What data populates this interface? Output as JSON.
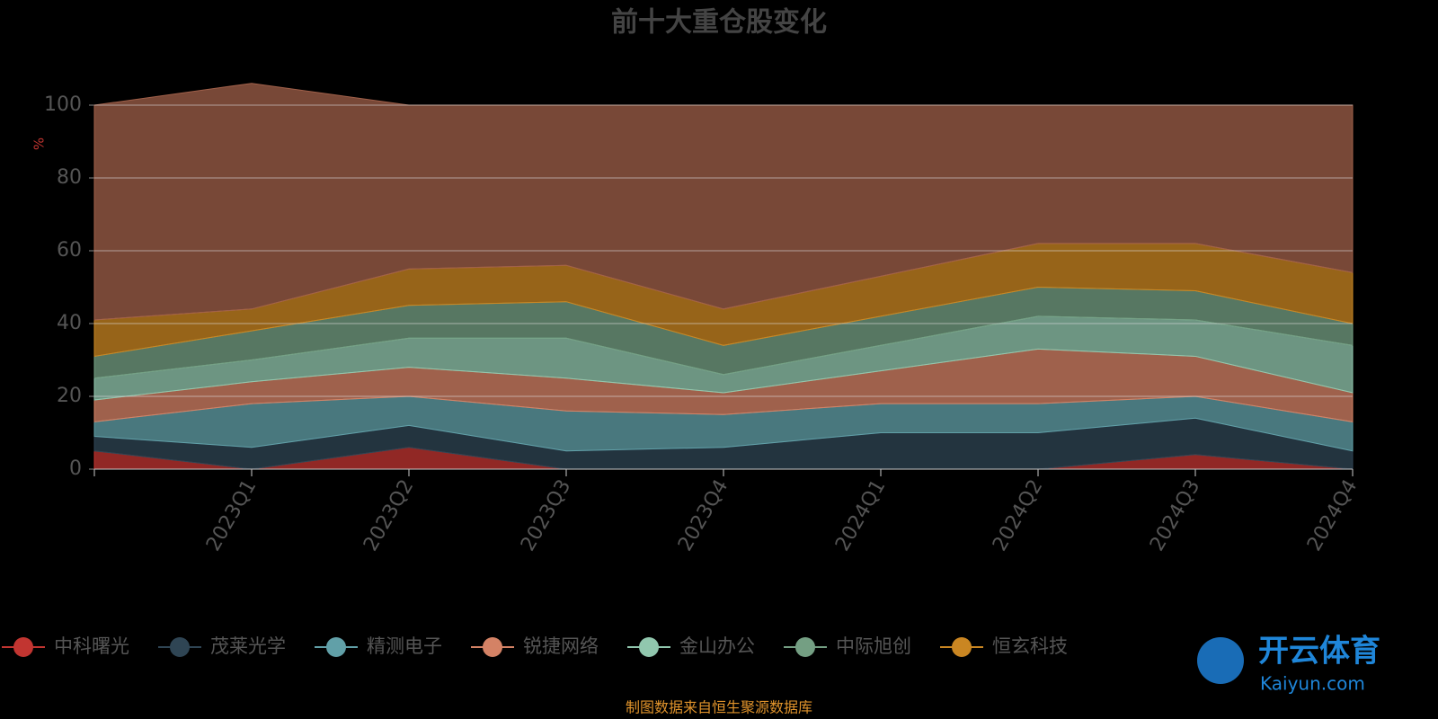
{
  "chart_data": {
    "type": "stacked-area",
    "title": "前十大重仓股变化",
    "y_label": "%",
    "categories": [
      null,
      "2023Q1",
      "2023Q2",
      "2023Q3",
      "2023Q4",
      "2024Q1",
      "2024Q2",
      "2024Q3",
      "2024Q4"
    ],
    "ylim": [
      0,
      100
    ],
    "yticks": [
      0,
      20,
      40,
      60,
      80,
      100
    ],
    "grid": true,
    "series": [
      {
        "name": "中科曙光",
        "color": "#c23531",
        "values": [
          5,
          0,
          6,
          0,
          0,
          0,
          0,
          4,
          0
        ]
      },
      {
        "name": "茂莱光学",
        "color": "#2f4554",
        "values": [
          4,
          6,
          6,
          5,
          6,
          10,
          10,
          10,
          5
        ]
      },
      {
        "name": "精测电子",
        "color": "#61a0a8",
        "values": [
          4,
          12,
          8,
          11,
          9,
          8,
          8,
          6,
          8
        ]
      },
      {
        "name": "锐捷网络",
        "color": "#d48265",
        "values": [
          6,
          6,
          8,
          9,
          6,
          9,
          15,
          11,
          8
        ]
      },
      {
        "name": "金山办公",
        "color": "#91c7ae",
        "values": [
          6,
          6,
          8,
          11,
          5,
          7,
          9,
          10,
          13
        ]
      },
      {
        "name": "中际旭创",
        "color": "#749f83",
        "values": [
          6,
          8,
          9,
          10,
          8,
          8,
          8,
          8,
          6
        ]
      },
      {
        "name": "恒玄科技",
        "color": "#ca8622",
        "values": [
          10,
          6,
          10,
          10,
          10,
          11,
          12,
          13,
          14
        ]
      },
      {
        "color": "#a0604a",
        "values": [
          59,
          62,
          45,
          44,
          56,
          47,
          38,
          38,
          46
        ]
      }
    ],
    "source": "制图数据来自恒生聚源数据库"
  },
  "watermark": {
    "brand": "开云体育",
    "url": "Kaiyun.com"
  }
}
